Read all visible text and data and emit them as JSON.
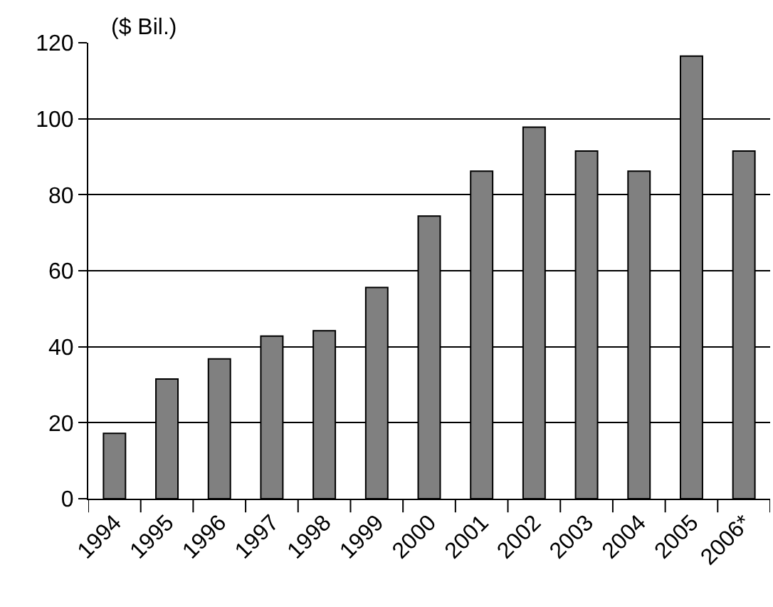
{
  "chart_data": {
    "type": "bar",
    "ylabel": "($ Bil.)",
    "categories": [
      "1994",
      "1995",
      "1996",
      "1997",
      "1998",
      "1999",
      "2000",
      "2001",
      "2002",
      "2003",
      "2004",
      "2005",
      "2006*"
    ],
    "values": [
      17.2,
      31.5,
      36.8,
      42.8,
      44.2,
      55.6,
      74.4,
      86.2,
      97.8,
      91.5,
      86.2,
      116.5,
      91.5
    ],
    "color": "#808080",
    "ylim": [
      0,
      120
    ],
    "yticks": [
      0,
      20,
      40,
      60,
      80,
      100,
      120
    ],
    "grid": "y"
  }
}
